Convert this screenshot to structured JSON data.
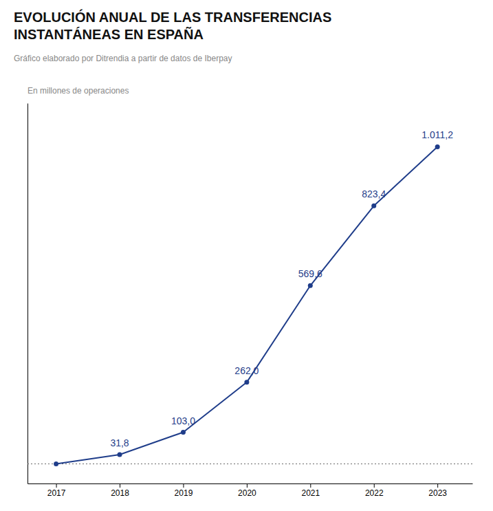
{
  "chart_data": {
    "type": "line",
    "title": "EVOLUCIÓN ANUAL DE LAS TRANSFERENCIAS\nINSTANTÁNEAS EN ESPAÑA",
    "subtitle": "Gráfico elaborado por Ditrendia a partir de datos de Iberpay",
    "ylabel": "En millones de operaciones",
    "x": [
      2017,
      2018,
      2019,
      2020,
      2021,
      2022,
      2023
    ],
    "values": [
      2.4,
      31.8,
      103.0,
      262.0,
      569.6,
      823.4,
      1011.2
    ],
    "value_labels": [
      null,
      "31,8",
      "103,0",
      "262,0",
      "569,6",
      "823,4",
      "1.011,2"
    ],
    "data_labels": true,
    "color": "#1f3d8a",
    "marker": "circle",
    "line_style": "solid",
    "xlim": [
      2016.55,
      2023.55
    ],
    "xticks": [
      2017,
      2018,
      2019,
      2020,
      2021,
      2022,
      2023
    ],
    "ylim": [
      -60,
      1150
    ],
    "tick_labels": "x",
    "grid": false,
    "hline": 2.4
  }
}
